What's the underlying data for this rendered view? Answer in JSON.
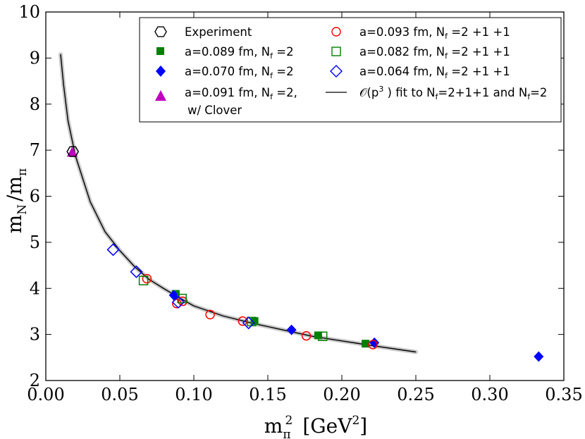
{
  "chart_data": {
    "type": "scatter",
    "title": "",
    "xlabel": "m_π² [GeV²]",
    "ylabel": "m_N / m_π",
    "xlim": [
      0.0,
      0.35
    ],
    "ylim": [
      2,
      10
    ],
    "x_ticks": [
      0.0,
      0.05,
      0.1,
      0.15,
      0.2,
      0.25,
      0.3,
      0.35
    ],
    "x_tick_labels": [
      "0.00",
      "0.05",
      "0.10",
      "0.15",
      "0.20",
      "0.25",
      "0.30",
      "0.35"
    ],
    "y_ticks": [
      2,
      3,
      4,
      5,
      6,
      7,
      8,
      9,
      10
    ],
    "y_tick_labels": [
      "2",
      "3",
      "4",
      "5",
      "6",
      "7",
      "8",
      "9",
      "10"
    ],
    "legend_position": "top-right",
    "axis_labels": {
      "x_main": "m",
      "x_sub": "π",
      "x_sup": "2",
      "x_unit_open": "[GeV",
      "x_unit_sup": "2",
      "x_unit_close": "]",
      "y_num": "m",
      "y_num_sub": "N",
      "y_slash": "/m",
      "y_den_sub": "π"
    },
    "legend_entries": [
      {
        "key": "experiment",
        "text": "Experiment"
      },
      {
        "key": "a089",
        "text": "a=0.089 fm, N",
        "sub": "f",
        "tail": " =2"
      },
      {
        "key": "a070",
        "text": "a=0.070 fm, N",
        "sub": "f",
        "tail": " =2"
      },
      {
        "key": "a091",
        "text": "a=0.091 fm, N",
        "sub": "f",
        "tail": " =2,",
        "line2": "w/ Clover"
      },
      {
        "key": "a093",
        "text": "a=0.093 fm, N",
        "sub": "f",
        "tail": " =2 +1 +1"
      },
      {
        "key": "a082",
        "text": "a=0.082 fm, N",
        "sub": "f",
        "tail": " =2 +1 +1"
      },
      {
        "key": "a064",
        "text": "a=0.064 fm, N",
        "sub": "f",
        "tail": " =2 +1 +1"
      },
      {
        "key": "fit",
        "text": "𝒪(p",
        "sup": "3",
        "mid": " ) fit to N",
        "sub": "f",
        "tail": "=2+1+1 and N",
        "sub2": "f",
        "tail2": "=2"
      }
    ],
    "series": [
      {
        "name": "Experiment",
        "marker": "hexagon-open",
        "color": "#000000",
        "points": [
          [
            0.0182,
            6.97
          ]
        ]
      },
      {
        "name": "a=0.089 fm, Nf=2",
        "marker": "square-filled",
        "color": "#008000",
        "points": [
          [
            0.0878,
            3.88
          ],
          [
            0.141,
            3.29
          ],
          [
            0.184,
            2.98
          ],
          [
            0.216,
            2.8
          ]
        ]
      },
      {
        "name": "a=0.070 fm, Nf=2",
        "marker": "diamond-filled",
        "color": "#0000ff",
        "points": [
          [
            0.0865,
            3.85
          ],
          [
            0.166,
            3.1
          ],
          [
            0.222,
            2.82
          ],
          [
            0.333,
            2.52
          ]
        ]
      },
      {
        "name": "a=0.091 fm, Nf=2, w/ Clover",
        "marker": "triangle-filled",
        "color": "#bf00bf",
        "points": [
          [
            0.0178,
            6.95
          ]
        ]
      },
      {
        "name": "a=0.093 fm, Nf=2+1+1",
        "marker": "circle-open",
        "color": "#ff0000",
        "points": [
          [
            0.0683,
            4.21
          ],
          [
            0.0925,
            3.72
          ],
          [
            0.111,
            3.43
          ],
          [
            0.133,
            3.29
          ],
          [
            0.176,
            2.97
          ],
          [
            0.221,
            2.78
          ],
          [
            0.0885,
            3.67
          ]
        ]
      },
      {
        "name": "a=0.082 fm, Nf=2+1+1",
        "marker": "square-open",
        "color": "#008000",
        "points": [
          [
            0.066,
            4.17
          ],
          [
            0.092,
            3.78
          ],
          [
            0.139,
            3.28
          ],
          [
            0.187,
            2.96
          ]
        ]
      },
      {
        "name": "a=0.064 fm, Nf=2+1+1",
        "marker": "diamond-open",
        "color": "#0000ff",
        "points": [
          [
            0.0455,
            4.84
          ],
          [
            0.0612,
            4.36
          ],
          [
            0.0895,
            3.7
          ],
          [
            0.137,
            3.25
          ]
        ]
      },
      {
        "name": "O(p^3) fit to Nf=2+1+1 and Nf=2",
        "type": "line",
        "color": "#000000",
        "points": [
          [
            0.01,
            9.08
          ],
          [
            0.012,
            8.42
          ],
          [
            0.015,
            7.64
          ],
          [
            0.02,
            6.88
          ],
          [
            0.03,
            5.88
          ],
          [
            0.04,
            5.23
          ],
          [
            0.05,
            4.82
          ],
          [
            0.06,
            4.47
          ],
          [
            0.07,
            4.19
          ],
          [
            0.08,
            3.99
          ],
          [
            0.09,
            3.8
          ],
          [
            0.1,
            3.62
          ],
          [
            0.12,
            3.4
          ],
          [
            0.14,
            3.24
          ],
          [
            0.16,
            3.1
          ],
          [
            0.18,
            2.96
          ],
          [
            0.2,
            2.86
          ],
          [
            0.22,
            2.76
          ],
          [
            0.25,
            2.62
          ]
        ]
      }
    ]
  }
}
